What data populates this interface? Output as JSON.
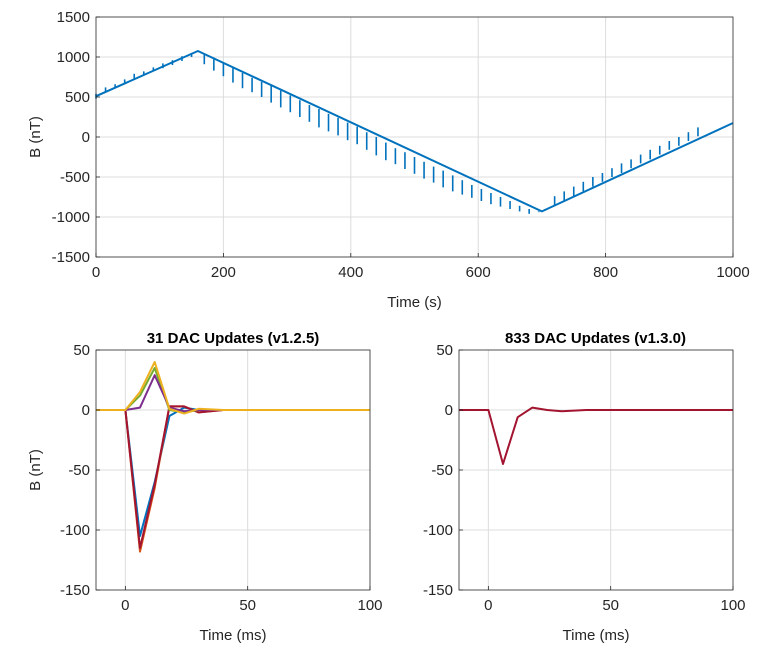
{
  "chart_data": [
    {
      "type": "line",
      "title": "",
      "xlabel": "Time (s)",
      "ylabel": "B (nT)",
      "xlim": [
        0,
        1000
      ],
      "ylim": [
        -1500,
        1500
      ],
      "xticks": [
        "0",
        "200",
        "400",
        "600",
        "800",
        "1000"
      ],
      "yticks": [
        "1500",
        "1000",
        "500",
        "0",
        "-500",
        "-1000",
        "-1500"
      ],
      "grid": true,
      "colors": [
        "#0072BD"
      ],
      "series": [
        {
          "x": [
            0,
            160,
            700,
            1000
          ],
          "y": [
            510,
            1075,
            -930,
            175
          ]
        }
      ],
      "spikes": {
        "x": [
          0,
          15,
          30,
          45,
          60,
          75,
          90,
          105,
          120,
          135,
          150,
          170,
          185,
          200,
          215,
          230,
          245,
          260,
          275,
          290,
          305,
          320,
          335,
          350,
          365,
          380,
          395,
          410,
          425,
          440,
          455,
          470,
          485,
          500,
          515,
          530,
          545,
          560,
          575,
          590,
          605,
          620,
          635,
          650,
          665,
          680,
          695,
          705,
          720,
          735,
          750,
          765,
          780,
          795,
          810,
          825,
          840,
          855,
          870,
          885,
          900,
          915,
          930,
          945
        ],
        "top": [
          540,
          620,
          660,
          720,
          790,
          820,
          870,
          920,
          960,
          1010,
          1050,
          1030,
          970,
          920,
          860,
          800,
          740,
          690,
          640,
          580,
          520,
          460,
          400,
          350,
          290,
          240,
          180,
          130,
          60,
          0,
          -70,
          -140,
          -190,
          -250,
          -310,
          -370,
          -420,
          -480,
          -540,
          -600,
          -650,
          -700,
          -750,
          -800,
          -860,
          -900,
          -940,
          -900,
          -740,
          -680,
          -620,
          -560,
          -500,
          -450,
          -390,
          -330,
          -280,
          -220,
          -160,
          -110,
          -50,
          0,
          60,
          120
        ],
        "bottom": [
          480,
          560,
          620,
          680,
          730,
          770,
          820,
          860,
          900,
          950,
          1000,
          910,
          830,
          760,
          680,
          610,
          560,
          500,
          430,
          370,
          310,
          250,
          190,
          120,
          70,
          20,
          -40,
          -90,
          -160,
          -230,
          -290,
          -340,
          -400,
          -460,
          -520,
          -570,
          -630,
          -680,
          -720,
          -760,
          -800,
          -840,
          -870,
          -900,
          -930,
          -960,
          -930,
          -920,
          -860,
          -800,
          -740,
          -680,
          -620,
          -560,
          -500,
          -450,
          -390,
          -330,
          -280,
          -220,
          -160,
          -110,
          -50,
          10
        ]
      }
    },
    {
      "type": "line",
      "title": "31 DAC Updates (v1.2.5)",
      "xlabel": "Time (ms)",
      "ylabel": "B (nT)",
      "xlim": [
        -12,
        100
      ],
      "ylim": [
        -150,
        50
      ],
      "xticks": [
        "0",
        "50",
        "100"
      ],
      "yticks": [
        "50",
        "0",
        "-50",
        "-100",
        "-150"
      ],
      "grid": true,
      "series": [
        {
          "color": "#0072BD",
          "x": [
            -12,
            0,
            6,
            12,
            18,
            24,
            30,
            40,
            60,
            100
          ],
          "y": [
            0,
            0,
            -105,
            -60,
            -5,
            2,
            0,
            0,
            0,
            0
          ]
        },
        {
          "color": "#D95319",
          "x": [
            -12,
            0,
            6,
            12,
            18,
            24,
            30,
            40,
            60,
            100
          ],
          "y": [
            0,
            0,
            -118,
            -65,
            3,
            3,
            -2,
            0,
            0,
            0
          ]
        },
        {
          "color": "#A2142F",
          "x": [
            -12,
            0,
            6,
            12,
            18,
            24,
            30,
            40,
            60,
            100
          ],
          "y": [
            0,
            0,
            -115,
            -62,
            3,
            3,
            -2,
            0,
            0,
            0
          ]
        },
        {
          "color": "#77AC30",
          "x": [
            -12,
            0,
            6,
            12,
            18,
            24,
            30,
            40,
            60,
            100
          ],
          "y": [
            0,
            0,
            12,
            35,
            0,
            -2,
            0,
            0,
            0,
            0
          ]
        },
        {
          "color": "#7E2F8E",
          "x": [
            -12,
            0,
            6,
            12,
            18,
            24,
            30,
            40,
            60,
            100
          ],
          "y": [
            0,
            0,
            2,
            29,
            2,
            -1,
            0,
            0,
            0,
            0
          ]
        },
        {
          "color": "#EDB120",
          "x": [
            -12,
            0,
            6,
            12,
            18,
            24,
            30,
            40,
            60,
            100
          ],
          "y": [
            0,
            0,
            15,
            40,
            1,
            -3,
            1,
            0,
            0,
            0
          ]
        }
      ]
    },
    {
      "type": "line",
      "title": "833 DAC Updates (v1.3.0)",
      "xlabel": "Time (ms)",
      "ylabel": "",
      "xlim": [
        -12,
        100
      ],
      "ylim": [
        -150,
        50
      ],
      "xticks": [
        "0",
        "50",
        "100"
      ],
      "yticks": [
        "50",
        "0",
        "-50",
        "-100",
        "-150"
      ],
      "grid": true,
      "series": [
        {
          "color": "#A2142F",
          "x": [
            -12,
            0,
            6,
            12,
            18,
            24,
            30,
            40,
            60,
            100
          ],
          "y": [
            0,
            0,
            -45,
            -6,
            2,
            0,
            -1,
            0,
            0,
            0
          ]
        }
      ]
    }
  ]
}
